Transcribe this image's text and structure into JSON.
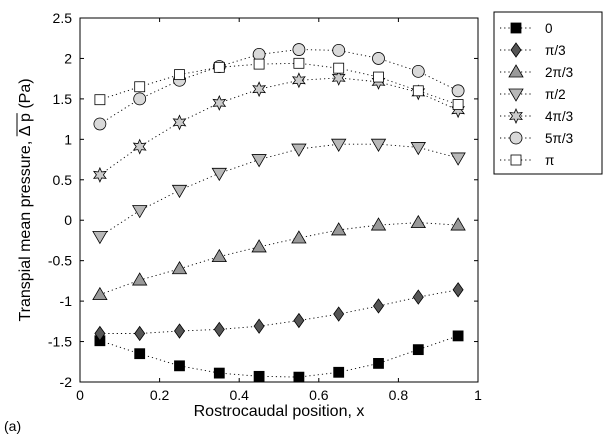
{
  "figure": {
    "panel_label": "(a)"
  },
  "chart_data": {
    "type": "scatter",
    "title": "",
    "xlabel": "Rostrocaudal position, x",
    "ylabel_prefix": "Transpial mean pressure, ",
    "ylabel_symbol": "Δ p",
    "ylabel_unit": " (Pa)",
    "xlim": [
      0,
      1
    ],
    "ylim": [
      -2,
      2.5
    ],
    "x_ticks": [
      "0",
      "0.2",
      "0.4",
      "0.6",
      "0.8",
      "1"
    ],
    "y_ticks": [
      "-2",
      "-1.5",
      "-1",
      "-0.5",
      "0",
      "0.5",
      "1",
      "1.5",
      "2",
      "2.5"
    ],
    "grid": false,
    "legend_position": "outside-right",
    "x": [
      0.05,
      0.15,
      0.25,
      0.35,
      0.45,
      0.55,
      0.65,
      0.75,
      0.85,
      0.95
    ],
    "series": [
      {
        "name": "0",
        "marker": "square",
        "fill": "#000000",
        "values": [
          -1.49,
          -1.65,
          -1.8,
          -1.89,
          -1.93,
          -1.94,
          -1.88,
          -1.77,
          -1.6,
          -1.43
        ]
      },
      {
        "name": "π/3",
        "marker": "diamond",
        "fill": "#555555",
        "values": [
          -1.4,
          -1.4,
          -1.37,
          -1.35,
          -1.31,
          -1.24,
          -1.16,
          -1.06,
          -0.95,
          -0.86
        ]
      },
      {
        "name": "2π/3",
        "marker": "triangle-up",
        "fill": "#999999",
        "values": [
          -0.92,
          -0.74,
          -0.6,
          -0.45,
          -0.33,
          -0.22,
          -0.12,
          -0.06,
          -0.03,
          -0.06
        ]
      },
      {
        "name": "π/2",
        "marker": "triangle-down",
        "fill": "#b8b8b8",
        "values": [
          -0.2,
          0.12,
          0.37,
          0.58,
          0.75,
          0.88,
          0.94,
          0.94,
          0.9,
          0.77
        ]
      },
      {
        "name": "4π/3",
        "marker": "hexagram",
        "fill": "#cccccc",
        "values": [
          0.56,
          0.91,
          1.21,
          1.45,
          1.62,
          1.73,
          1.76,
          1.71,
          1.58,
          1.36
        ]
      },
      {
        "name": "5π/3",
        "marker": "circle",
        "fill": "#d9d9d9",
        "values": [
          1.19,
          1.5,
          1.73,
          1.9,
          2.05,
          2.11,
          2.1,
          2.0,
          1.84,
          1.6
        ]
      },
      {
        "name": "π",
        "marker": "square-open",
        "fill": "#ffffff",
        "values": [
          1.49,
          1.65,
          1.8,
          1.89,
          1.93,
          1.94,
          1.88,
          1.77,
          1.6,
          1.43
        ]
      }
    ]
  }
}
